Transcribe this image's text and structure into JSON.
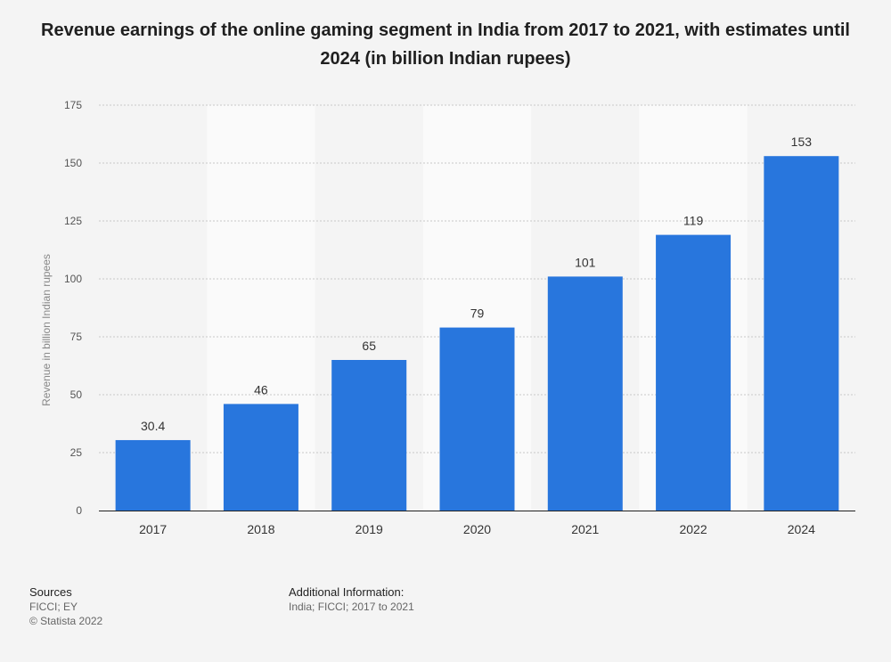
{
  "title": "Revenue earnings of the online gaming segment in India from 2017 to 2021, with estimates until 2024 (in billion Indian rupees)",
  "chart_data": {
    "type": "bar",
    "categories": [
      "2017",
      "2018",
      "2019",
      "2020",
      "2021",
      "2022",
      "2024"
    ],
    "values": [
      30.4,
      46,
      65,
      79,
      101,
      119,
      153
    ],
    "value_labels": [
      "30.4",
      "46",
      "65",
      "79",
      "101",
      "119",
      "153"
    ],
    "xlabel": "",
    "ylabel": "Revenue in billion Indian rupees",
    "ylim": [
      0,
      175
    ],
    "yticks": [
      0,
      25,
      50,
      75,
      100,
      125,
      150,
      175
    ],
    "grid": true,
    "bar_color": "#2876dd"
  },
  "footer": {
    "sources_heading": "Sources",
    "sources_text": "FICCI; EY",
    "copyright": "© Statista 2022",
    "additional_heading": "Additional Information:",
    "additional_text": "India; FICCI; 2017 to 2021"
  }
}
